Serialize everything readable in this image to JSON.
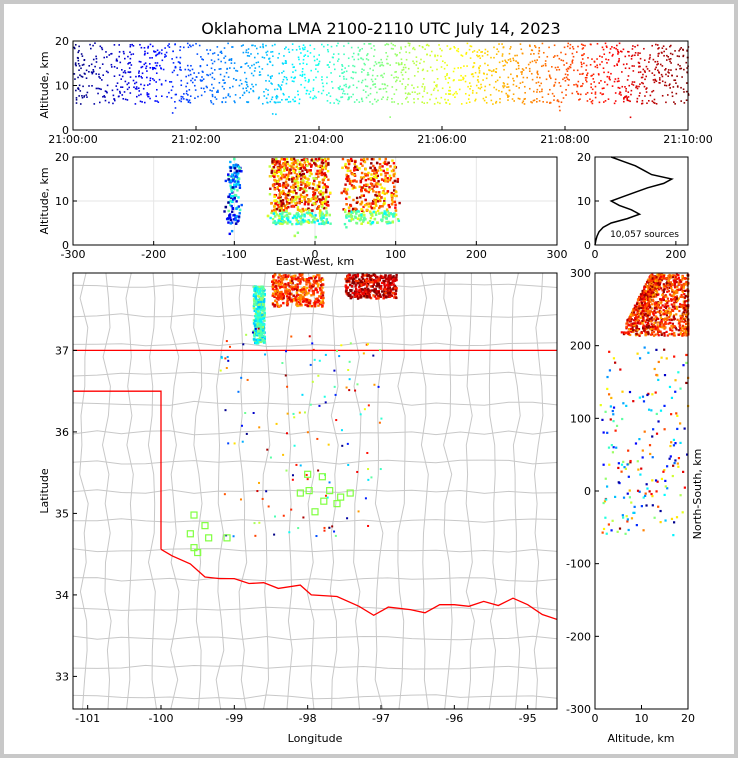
{
  "title": "Oklahoma LMA 2100-2110 UTC July 14, 2023",
  "chart_data": [
    {
      "name": "altitude-vs-time",
      "type": "scatter",
      "ylabel": "Altitude, km",
      "xlabel": "",
      "x_ticks": [
        "21:00:00",
        "21:02:00",
        "21:04:00",
        "21:06:00",
        "21:08:00",
        "21:10:00"
      ],
      "xlim_minutes": [
        0,
        10
      ],
      "ylim": [
        0,
        20
      ],
      "y_ticks": [
        0,
        10,
        20
      ],
      "color_by": "time",
      "colormap": [
        "#000080",
        "#0000ff",
        "#0080ff",
        "#00ffff",
        "#80ff80",
        "#ffff00",
        "#ff8000",
        "#ff0000",
        "#800000"
      ],
      "altitude_band_km": [
        6,
        20
      ]
    },
    {
      "name": "altitude-vs-east-west",
      "type": "scatter",
      "xlabel": "East-West, km",
      "ylabel": "Altitude, km",
      "xlim": [
        -300,
        300
      ],
      "ylim": [
        0,
        20
      ],
      "x_ticks": [
        -300,
        -200,
        -100,
        0,
        100,
        200,
        300
      ],
      "y_ticks": [
        0,
        10,
        20
      ],
      "clusters_ew_km": [
        [
          -110,
          -95
        ],
        [
          -55,
          15
        ],
        [
          35,
          100
        ]
      ]
    },
    {
      "name": "altitude-histogram",
      "type": "line",
      "xlim": [
        0,
        230
      ],
      "ylim": [
        0,
        20
      ],
      "x_ticks": [
        0,
        200
      ],
      "y_ticks": [
        0,
        10,
        20
      ],
      "annotation": "10,057 sources",
      "profile": [
        [
          0,
          0
        ],
        [
          2,
          1
        ],
        [
          5,
          2
        ],
        [
          10,
          3
        ],
        [
          20,
          4
        ],
        [
          40,
          5
        ],
        [
          80,
          6
        ],
        [
          110,
          7
        ],
        [
          90,
          8
        ],
        [
          60,
          9
        ],
        [
          40,
          10
        ],
        [
          70,
          11
        ],
        [
          100,
          12
        ],
        [
          130,
          13
        ],
        [
          170,
          14
        ],
        [
          190,
          15
        ],
        [
          140,
          16
        ],
        [
          120,
          17
        ],
        [
          100,
          18
        ],
        [
          70,
          19
        ],
        [
          40,
          20
        ]
      ]
    },
    {
      "name": "plan-view-map",
      "type": "scatter",
      "xlabel": "Longitude",
      "ylabel": "Latitude",
      "xlim": [
        -101.2,
        -94.6
      ],
      "ylim": [
        32.6,
        37.95
      ],
      "x_ticks": [
        -101,
        -100,
        -99,
        -98,
        -97,
        -96,
        -95
      ],
      "y_ticks": [
        33,
        34,
        35,
        36,
        37
      ],
      "state_border_color": "#ff0000",
      "county_line_color": "#c8c8c8",
      "station_color": "#80ff40",
      "stations": [
        [
          -99.55,
          34.98
        ],
        [
          -99.4,
          34.85
        ],
        [
          -99.6,
          34.75
        ],
        [
          -99.35,
          34.7
        ],
        [
          -99.55,
          34.58
        ],
        [
          -99.5,
          34.52
        ],
        [
          -99.1,
          34.7
        ],
        [
          -98.0,
          35.48
        ],
        [
          -97.8,
          35.45
        ],
        [
          -98.1,
          35.25
        ],
        [
          -97.98,
          35.28
        ],
        [
          -97.7,
          35.28
        ],
        [
          -97.55,
          35.2
        ],
        [
          -97.42,
          35.25
        ],
        [
          -97.78,
          35.15
        ],
        [
          -97.9,
          35.02
        ],
        [
          -97.6,
          35.12
        ]
      ]
    },
    {
      "name": "north-south-vs-altitude",
      "type": "scatter",
      "xlabel": "Altitude, km",
      "ylabel": "North-South, km",
      "xlim": [
        0,
        20
      ],
      "ylim": [
        -300,
        300
      ],
      "x_ticks": [
        0,
        10,
        20
      ],
      "y_ticks": [
        -300,
        -200,
        -100,
        0,
        100,
        200,
        300
      ]
    }
  ]
}
